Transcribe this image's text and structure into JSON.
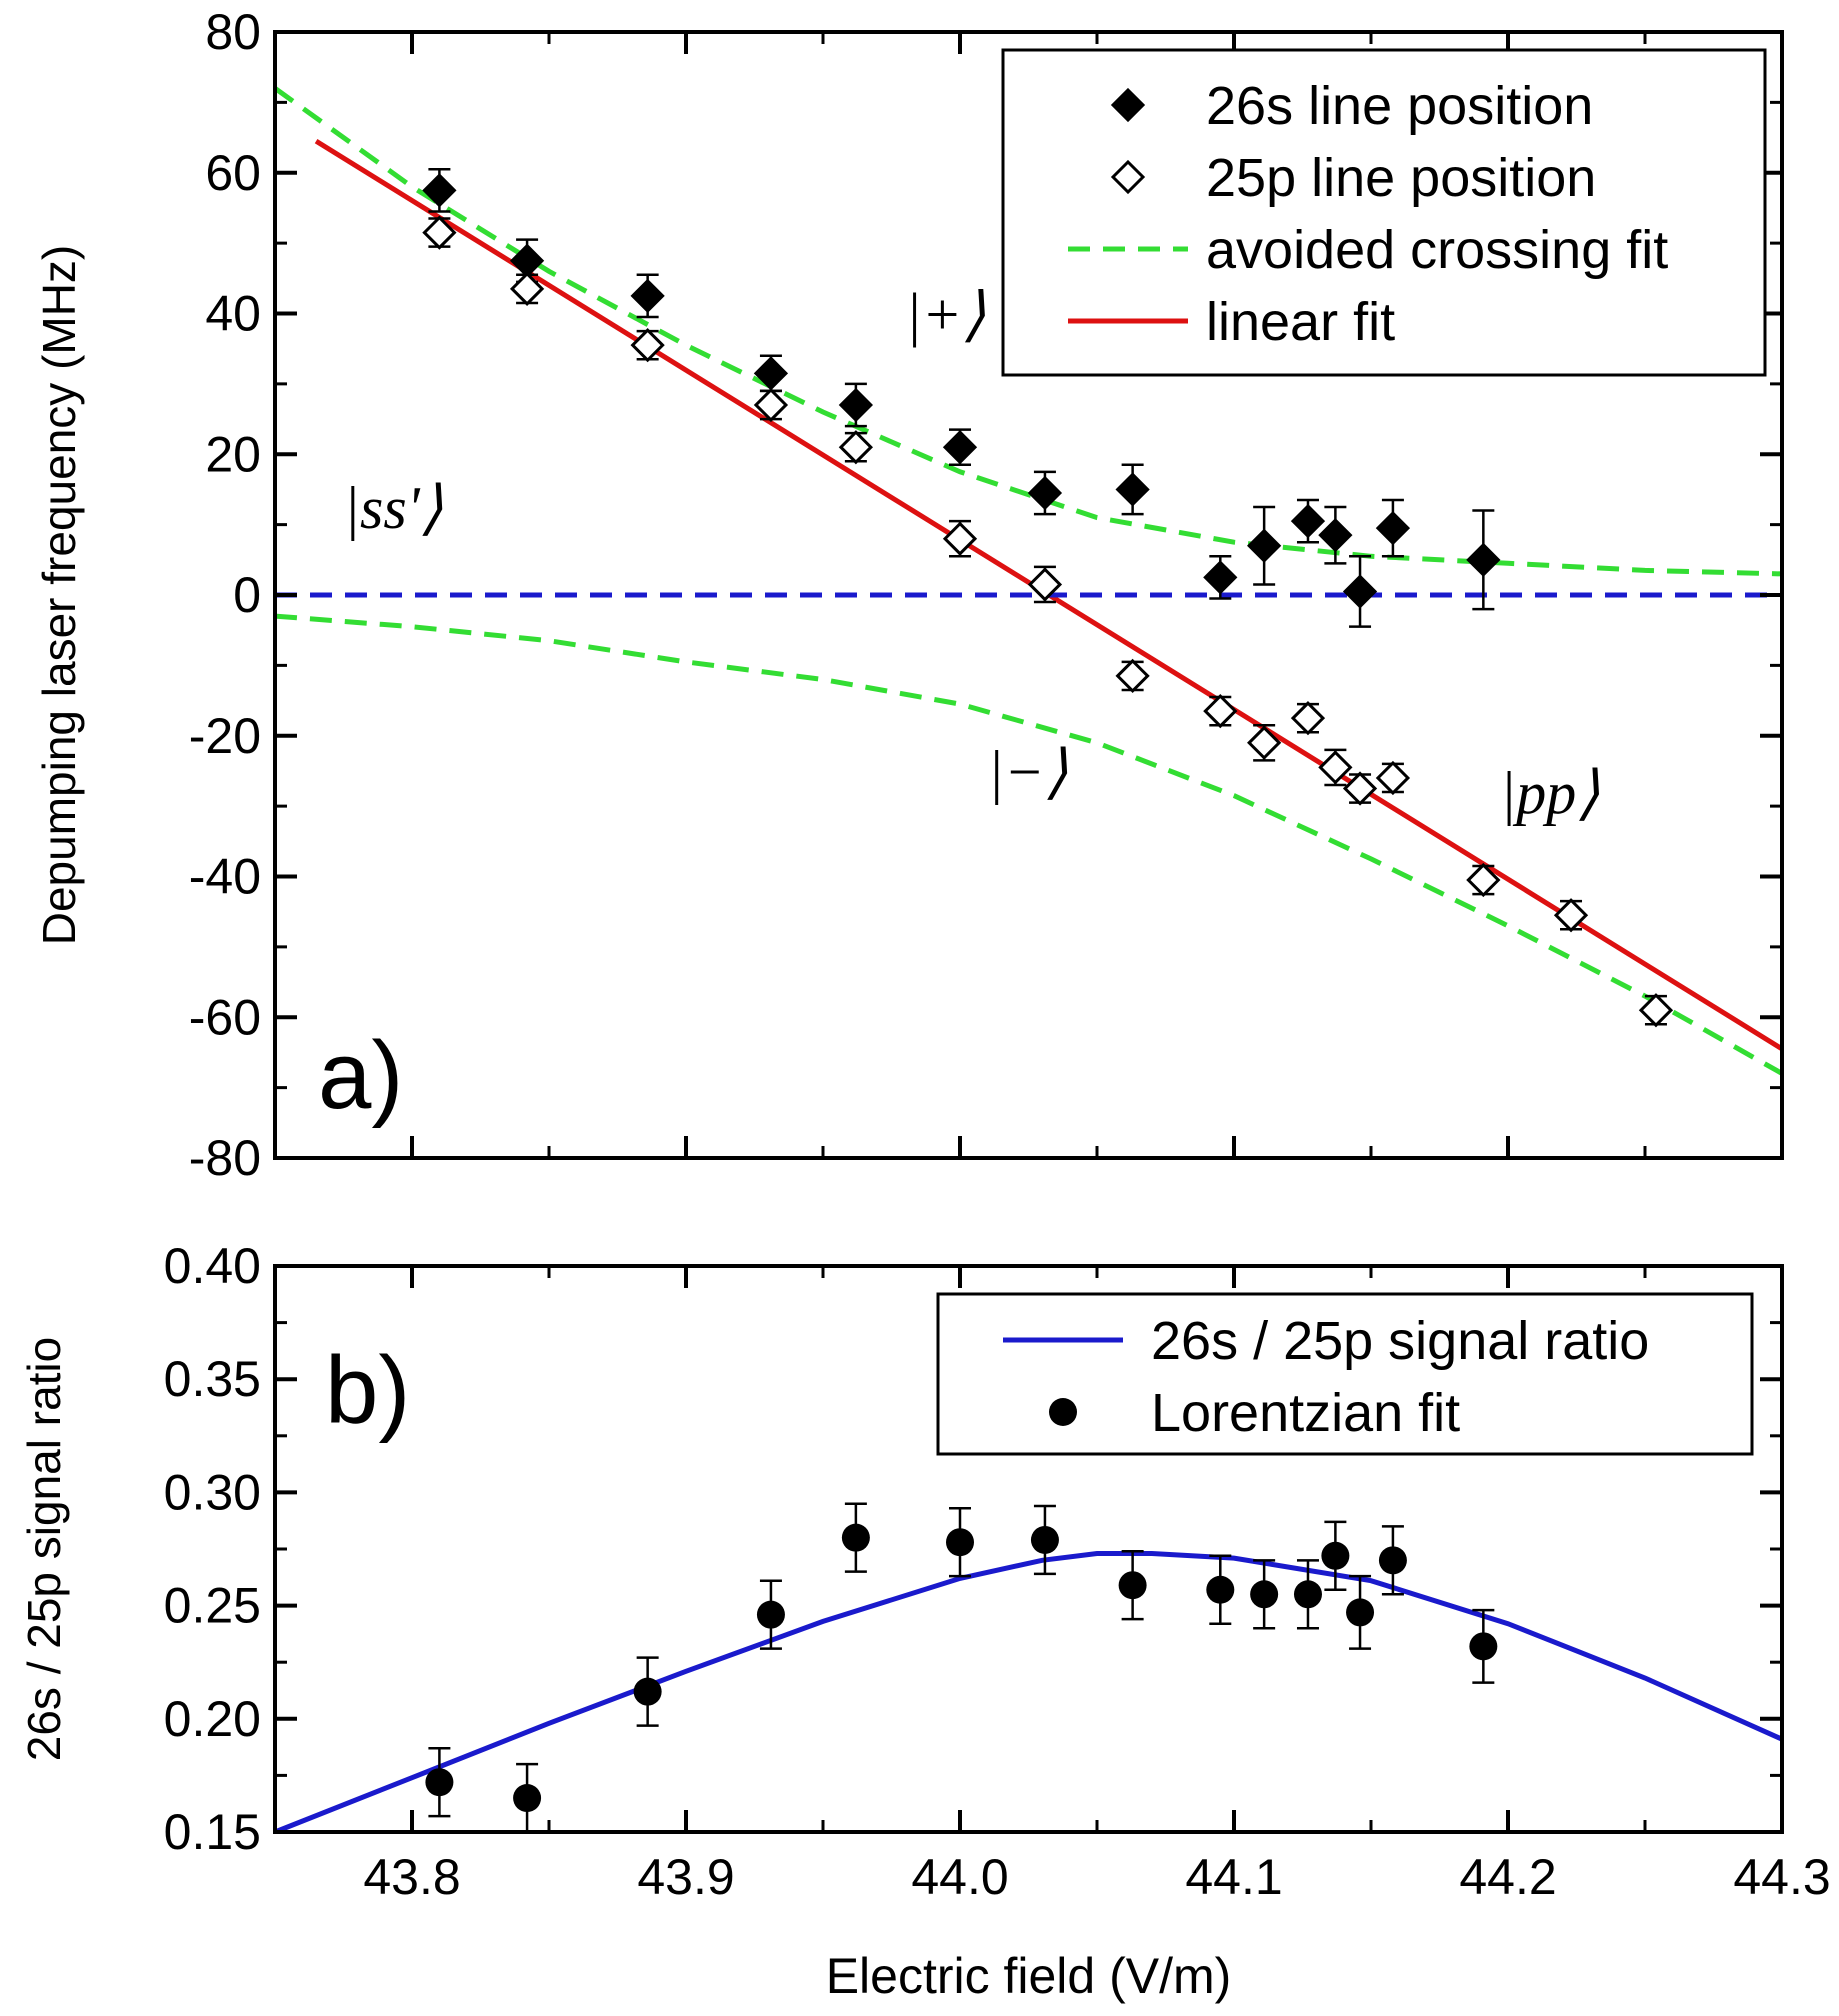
{
  "chart_data": [
    {
      "id": "a",
      "type": "scatter",
      "panel_label": "a)",
      "title": "",
      "xlabel": "",
      "ylabel": "Depumping laser frequency (MHz)",
      "xlim": [
        43.75,
        44.3
      ],
      "ylim": [
        -80,
        80
      ],
      "x_ticks": [
        43.8,
        43.9,
        44.0,
        44.1,
        44.2,
        44.3
      ],
      "y_ticks": [
        -80,
        -60,
        -40,
        -20,
        0,
        20,
        40,
        60,
        80
      ],
      "y_tick_labels": [
        "-80",
        "-60",
        "-40",
        "-20",
        "0",
        "20",
        "40",
        "60",
        "80"
      ],
      "legend_position": "top-right",
      "series": [
        {
          "name": "26s line position",
          "kind": "points",
          "marker": "diamond-filled",
          "color": "#000000",
          "x": [
            43.81,
            43.842,
            43.886,
            43.931,
            43.962,
            44.0,
            44.031,
            44.063,
            44.095,
            44.111,
            44.127,
            44.137,
            44.146,
            44.158,
            44.191
          ],
          "y": [
            57.5,
            47.5,
            42.5,
            31.5,
            27.0,
            21.0,
            14.5,
            15.0,
            2.5,
            7.0,
            10.5,
            8.5,
            0.5,
            9.5,
            5.0
          ],
          "err": [
            3.0,
            3.0,
            3.0,
            2.5,
            3.0,
            2.5,
            3.0,
            3.5,
            3.0,
            5.5,
            3.0,
            4.0,
            5.0,
            4.0,
            7.0
          ]
        },
        {
          "name": "25p line position",
          "kind": "points",
          "marker": "diamond-open",
          "color": "#000000",
          "x": [
            43.81,
            43.842,
            43.886,
            43.931,
            43.962,
            44.0,
            44.031,
            44.063,
            44.095,
            44.111,
            44.127,
            44.137,
            44.146,
            44.158,
            44.191,
            44.223,
            44.254
          ],
          "y": [
            51.5,
            43.5,
            35.5,
            27.0,
            21.0,
            8.0,
            1.5,
            -11.5,
            -16.5,
            -21.0,
            -17.5,
            -24.5,
            -27.5,
            -26.0,
            -40.5,
            -45.5,
            -59.0
          ],
          "err": [
            2.0,
            2.0,
            2.0,
            2.0,
            2.0,
            2.5,
            2.5,
            2.0,
            2.0,
            2.5,
            2.0,
            2.5,
            2.0,
            2.0,
            2.0,
            2.0,
            2.0
          ]
        },
        {
          "name": "avoided crossing fit",
          "kind": "line",
          "style": "dashed",
          "color": "#33dd33",
          "x": [
            43.75,
            43.8,
            43.85,
            43.9,
            43.95,
            44.0,
            44.05,
            44.1,
            44.15,
            44.2,
            44.25,
            44.3
          ],
          "y": [
            72.0,
            58.0,
            46.0,
            35.5,
            26.0,
            17.5,
            11.0,
            7.5,
            5.5,
            4.5,
            3.5,
            3.0
          ]
        },
        {
          "name": "",
          "kind": "line",
          "style": "dashed",
          "color": "#33dd33",
          "x": [
            43.75,
            43.8,
            43.85,
            43.9,
            43.95,
            44.0,
            44.05,
            44.1,
            44.15,
            44.2,
            44.25,
            44.3
          ],
          "y": [
            -3.0,
            -4.5,
            -6.5,
            -9.5,
            -12.0,
            -15.5,
            -21.0,
            -28.5,
            -37.5,
            -47.0,
            -57.0,
            -68.0
          ]
        },
        {
          "name": "linear fit",
          "kind": "line",
          "style": "solid",
          "color": "#dd1111",
          "x": [
            43.765,
            44.3
          ],
          "y": [
            64.5,
            -64.5
          ]
        },
        {
          "name": "",
          "kind": "line",
          "style": "dashed",
          "color": "#1a1acc",
          "x": [
            43.75,
            44.3
          ],
          "y": [
            0,
            0
          ]
        }
      ],
      "annotations": [
        {
          "text": "|ss'⟩",
          "x": 43.775,
          "y": 9.5
        },
        {
          "text": "|+⟩",
          "x": 43.98,
          "y": 37
        },
        {
          "text": "|−⟩",
          "x": 44.01,
          "y": -28
        },
        {
          "text": "|pp⟩",
          "x": 44.197,
          "y": -31
        }
      ]
    },
    {
      "id": "b",
      "type": "scatter",
      "panel_label": "b)",
      "title": "",
      "xlabel": "Electric field (V/m)",
      "ylabel": "26s / 25p signal ratio",
      "xlim": [
        43.75,
        44.3
      ],
      "ylim": [
        0.15,
        0.4
      ],
      "x_ticks": [
        43.8,
        43.9,
        44.0,
        44.1,
        44.2,
        44.3
      ],
      "x_tick_labels": [
        "43.8",
        "43.9",
        "44.0",
        "44.1",
        "44.2",
        "44.3"
      ],
      "y_ticks": [
        0.15,
        0.2,
        0.25,
        0.3,
        0.35,
        0.4
      ],
      "y_tick_labels": [
        "0.15",
        "0.20",
        "0.25",
        "0.30",
        "0.35",
        "0.40"
      ],
      "legend_position": "top-right",
      "series": [
        {
          "name": "26s / 25p signal ratio",
          "kind": "line",
          "style": "solid",
          "color": "#1a1acc",
          "x": [
            43.75,
            43.8,
            43.85,
            43.9,
            43.95,
            44.0,
            44.03,
            44.05,
            44.07,
            44.1,
            44.15,
            44.2,
            44.25,
            44.3
          ],
          "y": [
            0.15,
            0.174,
            0.198,
            0.221,
            0.243,
            0.262,
            0.27,
            0.273,
            0.273,
            0.271,
            0.261,
            0.242,
            0.218,
            0.191
          ]
        },
        {
          "name": "Lorentzian fit",
          "kind": "points",
          "marker": "circle-filled",
          "color": "#000000",
          "x": [
            43.81,
            43.842,
            43.886,
            43.931,
            43.962,
            44.0,
            44.031,
            44.063,
            44.095,
            44.111,
            44.127,
            44.137,
            44.146,
            44.158,
            44.191
          ],
          "y": [
            0.172,
            0.165,
            0.212,
            0.246,
            0.28,
            0.278,
            0.279,
            0.259,
            0.257,
            0.255,
            0.255,
            0.272,
            0.247,
            0.27,
            0.232
          ],
          "err": [
            0.015,
            0.015,
            0.015,
            0.015,
            0.015,
            0.015,
            0.015,
            0.015,
            0.015,
            0.015,
            0.015,
            0.015,
            0.016,
            0.015,
            0.016
          ]
        }
      ]
    }
  ]
}
